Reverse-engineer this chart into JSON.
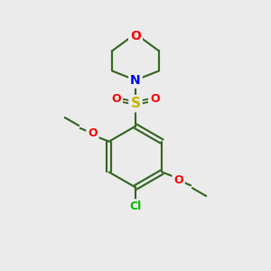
{
  "bg_color": "#ebebeb",
  "bond_color": "#3a6b28",
  "atom_colors": {
    "O": "#ff0000",
    "N": "#0000ff",
    "S": "#c8b400",
    "Cl": "#00bb00",
    "C": "#3a6b28"
  },
  "figsize": [
    3.0,
    3.0
  ],
  "dpi": 100
}
